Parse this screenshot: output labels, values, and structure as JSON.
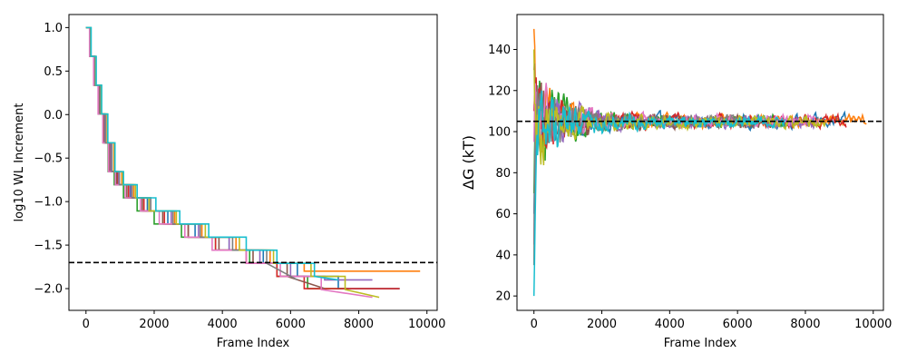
{
  "chart_data": [
    {
      "type": "line",
      "xlabel": "Frame Index",
      "ylabel": "log10 WL Increment",
      "xlim": [
        -500,
        10300
      ],
      "ylim": [
        -2.25,
        1.15
      ],
      "xticks": [
        0,
        2000,
        4000,
        6000,
        8000,
        10000
      ],
      "xtick_labels": [
        "0",
        "2000",
        "4000",
        "6000",
        "8000",
        "10000"
      ],
      "yticks": [
        1.0,
        0.5,
        0.0,
        -0.5,
        -1.0,
        -1.5,
        -2.0
      ],
      "ytick_labels": [
        "1.0",
        "0.5",
        "0.0",
        "−0.5",
        "−1.0",
        "−1.5",
        "−2.0"
      ],
      "grid": false,
      "reference_line": {
        "y": -1.7,
        "style": "dashed",
        "color": "#000000"
      },
      "series": [
        {
          "color": "#1f77b4",
          "step_ends": [
            0,
            130,
            260,
            400,
            560,
            740,
            950,
            1300,
            1800,
            2400,
            3200,
            4200,
            5200,
            6200,
            7400,
            8400
          ],
          "end": 9200,
          "final": -2.0
        },
        {
          "color": "#ff7f0e",
          "step_ends": [
            0,
            140,
            280,
            440,
            620,
            820,
            1050,
            1400,
            1900,
            2600,
            3400,
            4400,
            5400,
            6400,
            8000
          ],
          "end": 9800,
          "final": -1.8
        },
        {
          "color": "#2ca02c",
          "step_ends": [
            0,
            110,
            230,
            360,
            500,
            650,
            830,
            1100,
            1500,
            2000,
            2800,
            3800,
            4800,
            5600,
            6500
          ],
          "end": 7700,
          "final": -2.0
        },
        {
          "color": "#d62728",
          "step_ends": [
            0,
            120,
            250,
            390,
            540,
            720,
            930,
            1250,
            1700,
            2300,
            3000,
            3800,
            4700,
            5600,
            6400,
            7400
          ],
          "end": 9200,
          "final": -2.0
        },
        {
          "color": "#9467bd",
          "step_ends": [
            0,
            125,
            255,
            395,
            550,
            730,
            960,
            1320,
            1850,
            2500,
            3300,
            4200,
            5100,
            6000,
            7000
          ],
          "end": 8400,
          "final": -1.9
        },
        {
          "color": "#8c564b",
          "step_ends": [
            0,
            115,
            240,
            370,
            520,
            690,
            900,
            1200,
            1650,
            2250,
            3000,
            3900,
            4900,
            5900
          ],
          "end": 7000,
          "final": -2.0
        },
        {
          "color": "#e377c2",
          "step_ends": [
            0,
            105,
            225,
            355,
            495,
            660,
            860,
            1150,
            1600,
            2150,
            2900,
            3700,
            4700,
            5700,
            6900
          ],
          "end": 8400,
          "final": -2.1
        },
        {
          "color": "#7f7f7f",
          "step_ends": [
            0,
            135,
            265,
            410,
            575,
            760,
            980,
            1350,
            1900,
            2550,
            3350,
            4300,
            5300
          ],
          "end": 6200,
          "final": -1.9
        },
        {
          "color": "#bcbd22",
          "step_ends": [
            0,
            145,
            290,
            450,
            630,
            840,
            1080,
            1450,
            1850,
            2650,
            3500,
            4500,
            5500,
            6600,
            7600
          ],
          "end": 8600,
          "final": -2.1
        },
        {
          "color": "#17becf",
          "step_ends": [
            0,
            150,
            300,
            460,
            640,
            850,
            1100,
            1500,
            2050,
            2750,
            3600,
            4700,
            5600,
            6700
          ],
          "end": 7400,
          "final": -1.9
        }
      ]
    },
    {
      "type": "line",
      "xlabel": "Frame Index",
      "ylabel": "ΔG (kT)",
      "xlim": [
        -500,
        10300
      ],
      "ylim": [
        13,
        157
      ],
      "xticks": [
        0,
        2000,
        4000,
        6000,
        8000,
        10000
      ],
      "xtick_labels": [
        "0",
        "2000",
        "4000",
        "6000",
        "8000",
        "10000"
      ],
      "yticks": [
        20,
        40,
        60,
        80,
        100,
        120,
        140
      ],
      "ytick_labels": [
        "20",
        "40",
        "60",
        "80",
        "100",
        "120",
        "140"
      ],
      "grid": false,
      "reference_line": {
        "y": 105,
        "style": "dashed",
        "color": "#000000"
      },
      "series": [
        {
          "color": "#1f77b4",
          "start": 60,
          "end_x": 9200
        },
        {
          "color": "#ff7f0e",
          "start": 150,
          "end_x": 9800
        },
        {
          "color": "#2ca02c",
          "start": 70,
          "end_x": 7700
        },
        {
          "color": "#d62728",
          "start": 110,
          "end_x": 9200
        },
        {
          "color": "#9467bd",
          "start": 45,
          "end_x": 8400
        },
        {
          "color": "#8c564b",
          "start": 130,
          "end_x": 7000
        },
        {
          "color": "#e377c2",
          "start": 95,
          "end_x": 8400
        },
        {
          "color": "#7f7f7f",
          "start": 35,
          "end_x": 6200
        },
        {
          "color": "#bcbd22",
          "start": 140,
          "end_x": 8600
        },
        {
          "color": "#17becf",
          "start": 20,
          "end_x": 7400
        }
      ]
    }
  ]
}
